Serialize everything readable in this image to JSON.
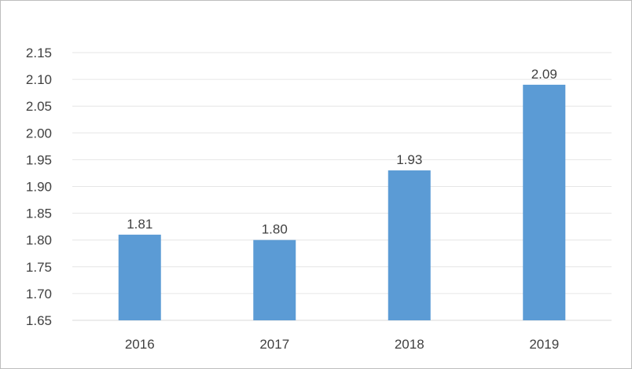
{
  "chart_data": {
    "type": "bar",
    "categories": [
      "2016",
      "2017",
      "2018",
      "2019"
    ],
    "values": [
      1.81,
      1.8,
      1.93,
      2.09
    ],
    "data_labels": [
      "1.81",
      "1.80",
      "1.93",
      "2.09"
    ],
    "y_ticks": [
      "1.65",
      "1.70",
      "1.75",
      "1.80",
      "1.85",
      "1.90",
      "1.95",
      "2.00",
      "2.05",
      "2.10",
      "2.15"
    ],
    "title": "",
    "xlabel": "",
    "ylabel": "",
    "ylim": [
      1.65,
      2.15
    ],
    "grid": true,
    "legend": "none",
    "bar_color": "#5b9bd5",
    "grid_color": "#e6e6e6",
    "text_color": "#404040"
  }
}
